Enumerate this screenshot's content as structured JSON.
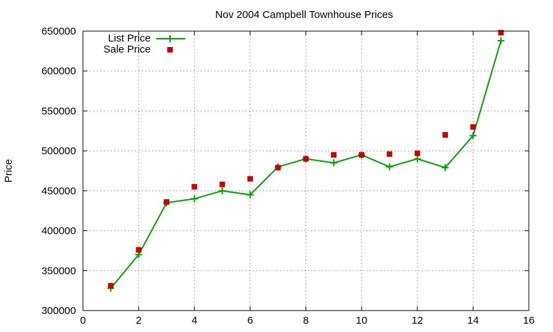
{
  "chart_data": {
    "type": "line",
    "title": "Nov 2004 Campbell Townhouse Prices",
    "xlabel": "",
    "ylabel": "Price",
    "xlim": [
      0,
      16
    ],
    "ylim": [
      300000,
      650000
    ],
    "x_ticks": [
      "0",
      "2",
      "4",
      "6",
      "8",
      "10",
      "12",
      "14",
      "16"
    ],
    "y_ticks": [
      "300000",
      "350000",
      "400000",
      "450000",
      "500000",
      "550000",
      "600000",
      "650000"
    ],
    "grid": true,
    "legend_position": "top-left",
    "x": [
      1,
      2,
      3,
      4,
      5,
      6,
      7,
      8,
      9,
      10,
      11,
      12,
      13,
      14,
      15
    ],
    "series": [
      {
        "name": "List Price",
        "style": "line+cross",
        "color": "#00a000",
        "values": [
          328000,
          370000,
          435000,
          440000,
          450000,
          445000,
          480000,
          490000,
          485000,
          495000,
          480000,
          490000,
          479000,
          519000,
          638000
        ]
      },
      {
        "name": "Sale Price",
        "style": "square-points",
        "color": "#cc0000",
        "values": [
          331000,
          376000,
          436000,
          455000,
          458000,
          465000,
          479000,
          490000,
          495000,
          495000,
          496000,
          497000,
          520000,
          530000,
          648000
        ]
      }
    ]
  }
}
